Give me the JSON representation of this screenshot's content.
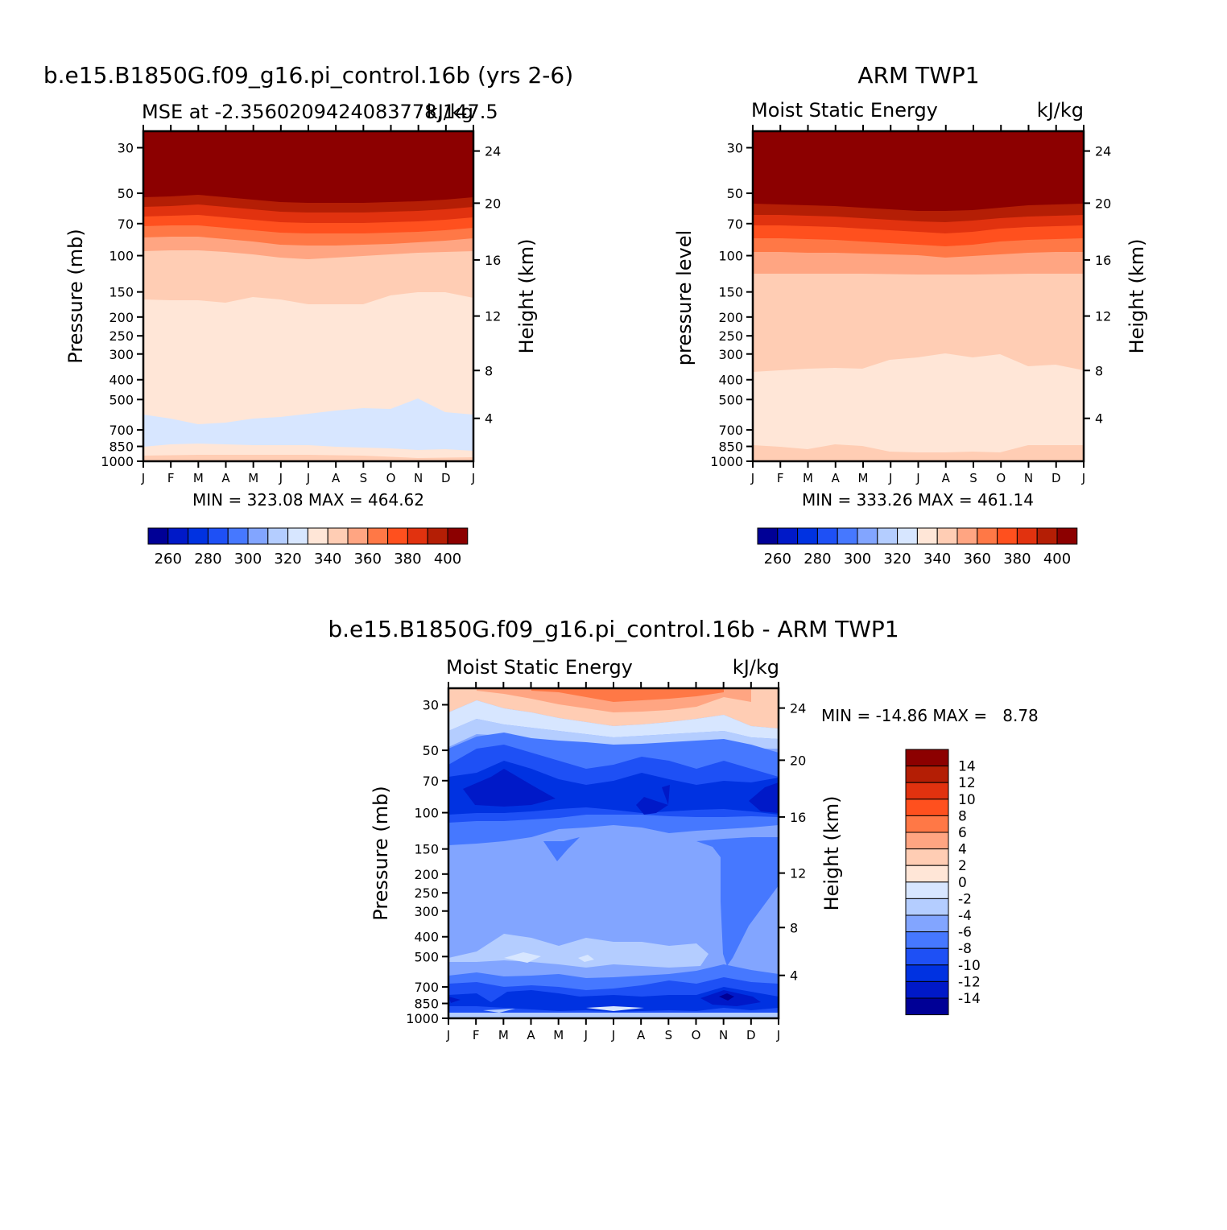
{
  "colors": {
    "mse_scale": [
      "#000096",
      "#0019c8",
      "#0032e1",
      "#1e50f5",
      "#4678ff",
      "#82a5ff",
      "#b4cdff",
      "#d7e6ff",
      "#ffe6d7",
      "#ffcdb4",
      "#ffa582",
      "#ff7846",
      "#ff501e",
      "#e1320f",
      "#b41e05",
      "#8c0000"
    ],
    "diff_scale": [
      "#000096",
      "#0019c8",
      "#0032e1",
      "#1e50f5",
      "#4678ff",
      "#82a5ff",
      "#b4cdff",
      "#d7e6ff",
      "#ffe6d7",
      "#ffcdb4",
      "#ffa582",
      "#ff7846",
      "#ff501e",
      "#e1320f",
      "#b41e05",
      "#8c0000"
    ]
  },
  "chart_data": [
    {
      "id": "model",
      "type": "heatmap",
      "title": "b.e15.B1850G.f09_g16.pi_control.16b (yrs 2-6)",
      "subtitle_left": "MSE at -2.3560209424083778,147.5",
      "subtitle_right": "kJ/kg",
      "ylabel": "Pressure (mb)",
      "ylabel_right": "Height (km)",
      "x_ticks": [
        "J",
        "F",
        "M",
        "A",
        "M",
        "J",
        "J",
        "A",
        "S",
        "O",
        "N",
        "D",
        "J"
      ],
      "y_ticks": [
        "30",
        "50",
        "70",
        "100",
        "150",
        "200",
        "250",
        "300",
        "400",
        "500",
        "700",
        "850",
        "1000"
      ],
      "height_ticks": [
        "24",
        "20",
        "16",
        "12",
        "8",
        "4"
      ],
      "stats": "MIN = 323.08 MAX = 464.62",
      "min": 323.08,
      "max": 464.62,
      "colorbar_labels": [
        "260",
        "280",
        "300",
        "320",
        "340",
        "360",
        "380",
        "400"
      ]
    },
    {
      "id": "obs",
      "type": "heatmap",
      "title": "ARM TWP1",
      "subtitle_left": "Moist Static Energy",
      "subtitle_right": "kJ/kg",
      "ylabel": "pressure level",
      "ylabel_right": "Height (km)",
      "x_ticks": [
        "J",
        "F",
        "M",
        "A",
        "M",
        "J",
        "J",
        "A",
        "S",
        "O",
        "N",
        "D",
        "J"
      ],
      "y_ticks": [
        "30",
        "50",
        "70",
        "100",
        "150",
        "200",
        "250",
        "300",
        "400",
        "500",
        "700",
        "850",
        "1000"
      ],
      "height_ticks": [
        "24",
        "20",
        "16",
        "12",
        "8",
        "4"
      ],
      "stats": "MIN = 333.26 MAX = 461.14",
      "min": 333.26,
      "max": 461.14,
      "colorbar_labels": [
        "260",
        "280",
        "300",
        "320",
        "340",
        "360",
        "380",
        "400"
      ]
    },
    {
      "id": "diff",
      "type": "heatmap",
      "title": "b.e15.B1850G.f09_g16.pi_control.16b - ARM TWP1",
      "subtitle_left": "Moist Static Energy",
      "subtitle_right": "kJ/kg",
      "ylabel": "Pressure (mb)",
      "ylabel_right": "Height (km)",
      "x_ticks": [
        "J",
        "F",
        "M",
        "A",
        "M",
        "J",
        "J",
        "A",
        "S",
        "O",
        "N",
        "D",
        "J"
      ],
      "y_ticks": [
        "30",
        "50",
        "70",
        "100",
        "150",
        "200",
        "250",
        "300",
        "400",
        "500",
        "700",
        "850",
        "1000"
      ],
      "height_ticks": [
        "24",
        "20",
        "16",
        "12",
        "8",
        "4"
      ],
      "stats": "MIN = -14.86 MAX =   8.78",
      "min": -14.86,
      "max": 8.78,
      "colorbar_labels": [
        "14",
        "12",
        "10",
        "8",
        "6",
        "4",
        "2",
        "0",
        "-2",
        "-4",
        "-6",
        "-8",
        "-10",
        "-12",
        "-14"
      ]
    }
  ]
}
